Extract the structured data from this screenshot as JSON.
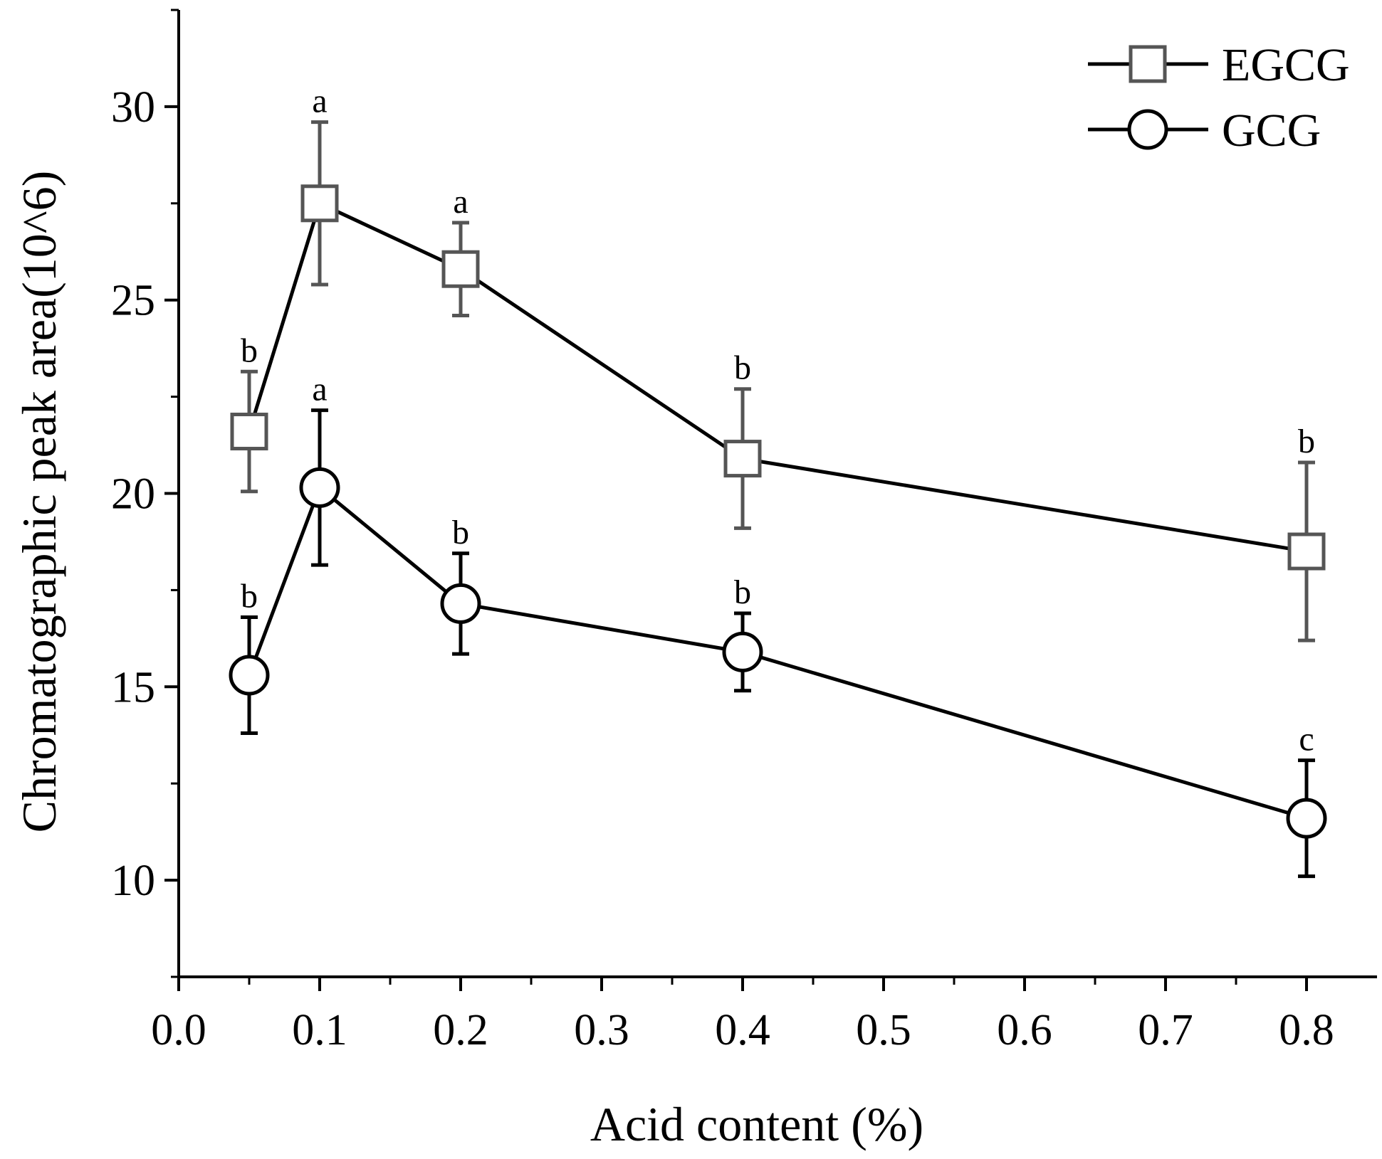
{
  "chart_data": {
    "type": "line",
    "title": "",
    "xlabel": "Acid content (%)",
    "ylabel": "Chromatographic peak area(10^6)",
    "xlim": [
      0.0,
      0.85
    ],
    "ylim": [
      7.5,
      32.5
    ],
    "x_ticks": [
      0.0,
      0.1,
      0.2,
      0.3,
      0.4,
      0.5,
      0.6,
      0.7,
      0.8
    ],
    "x_tick_labels": [
      "0.0",
      "0.1",
      "0.2",
      "0.3",
      "0.4",
      "0.5",
      "0.6",
      "0.7",
      "0.8"
    ],
    "y_ticks": [
      10,
      15,
      20,
      25,
      30
    ],
    "y_tick_labels": [
      "10",
      "15",
      "20",
      "25",
      "30"
    ],
    "grid": false,
    "legend_position": "top-right",
    "x": [
      0.05,
      0.1,
      0.2,
      0.4,
      0.8
    ],
    "series": [
      {
        "name": "EGCG",
        "marker": "square",
        "color": "#555555",
        "values": [
          21.6,
          27.5,
          25.8,
          20.9,
          18.5
        ],
        "errors": [
          1.55,
          2.1,
          1.2,
          1.8,
          2.3
        ],
        "significance": [
          "b",
          "a",
          "a",
          "b",
          "b"
        ]
      },
      {
        "name": "GCG",
        "marker": "circle",
        "color": "#000000",
        "values": [
          15.3,
          20.15,
          17.15,
          15.9,
          11.6
        ],
        "errors": [
          1.5,
          2.0,
          1.3,
          1.0,
          1.5
        ],
        "significance": [
          "b",
          "a",
          "b",
          "b",
          "c"
        ]
      }
    ]
  }
}
